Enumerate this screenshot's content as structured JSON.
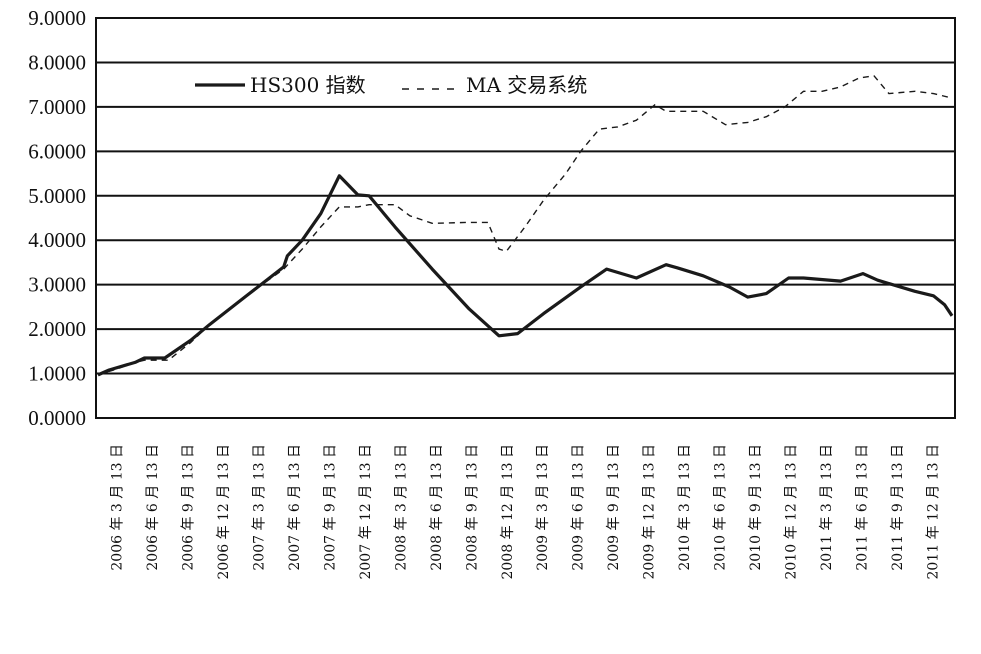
{
  "chart_data": {
    "type": "line",
    "title": "",
    "xlabel": "",
    "ylabel": "",
    "ylim": [
      0,
      9
    ],
    "yticks": [
      "0.0000",
      "1.0000",
      "2.0000",
      "3.0000",
      "4.0000",
      "5.0000",
      "6.0000",
      "7.0000",
      "8.0000",
      "9.0000"
    ],
    "grid": true,
    "legend_position": "top-left",
    "x_tick_labels": [
      "2006 年 3 月 13 日",
      "2006 年 6 月 13 日",
      "2006 年 9 月 13 日",
      "2006 年 12 月 13 日",
      "2007 年 3 月 13 日",
      "2007 年 6 月 13 日",
      "2007 年 9 月 13 日",
      "2007 年 12 月 13 日",
      "2008 年 3 月 13 日",
      "2008 年 6 月 13 日",
      "2008 年 9 月 13 日",
      "2008 年 12 月 13 日",
      "2009 年 3 月 13 日",
      "2009 年 6 月 13 日",
      "2009 年 9 月 13 日",
      "2009 年 12 月 13 日",
      "2010 年 3 月 13 日",
      "2010 年 6 月 13 日",
      "2010 年 9 月 13 日",
      "2010 年 12 月 13 日",
      "2011 年 3 月 13 日",
      "2011 年 6 月 13 日",
      "2011 年 9 月 13 日",
      "2011 年 12 月 13 日"
    ],
    "x_range": [
      0,
      23
    ],
    "series": [
      {
        "name": "HS300 指数",
        "style": "solid",
        "color": "#1a1a1a",
        "points": [
          [
            0,
            0.97
          ],
          [
            0.3,
            1.08
          ],
          [
            1.0,
            1.25
          ],
          [
            1.25,
            1.35
          ],
          [
            1.8,
            1.35
          ],
          [
            2.5,
            1.75
          ],
          [
            3,
            2.1
          ],
          [
            4,
            2.75
          ],
          [
            5,
            3.4
          ],
          [
            5.1,
            3.65
          ],
          [
            5.5,
            4.0
          ],
          [
            6,
            4.6
          ],
          [
            6.5,
            5.45
          ],
          [
            7,
            5.02
          ],
          [
            7.3,
            5.0
          ],
          [
            8,
            4.3
          ],
          [
            9,
            3.35
          ],
          [
            10,
            2.45
          ],
          [
            10.8,
            1.85
          ],
          [
            11.3,
            1.9
          ],
          [
            12,
            2.35
          ],
          [
            13,
            2.95
          ],
          [
            13.7,
            3.35
          ],
          [
            14.5,
            3.15
          ],
          [
            15.3,
            3.45
          ],
          [
            15.6,
            3.38
          ],
          [
            16.3,
            3.2
          ],
          [
            17,
            2.95
          ],
          [
            17.5,
            2.72
          ],
          [
            18,
            2.8
          ],
          [
            18.6,
            3.15
          ],
          [
            19,
            3.15
          ],
          [
            20,
            3.08
          ],
          [
            20.6,
            3.25
          ],
          [
            21,
            3.1
          ],
          [
            22,
            2.85
          ],
          [
            22.5,
            2.75
          ],
          [
            22.8,
            2.55
          ],
          [
            23,
            2.3
          ]
        ]
      },
      {
        "name": "MA 交易系统",
        "style": "dashed",
        "color": "#1a1a1a",
        "points": [
          [
            0,
            0.97
          ],
          [
            0.5,
            1.1
          ],
          [
            1.0,
            1.25
          ],
          [
            1.25,
            1.3
          ],
          [
            1.9,
            1.3
          ],
          [
            2.5,
            1.7
          ],
          [
            3,
            2.1
          ],
          [
            4,
            2.75
          ],
          [
            5,
            3.35
          ],
          [
            5.5,
            3.8
          ],
          [
            6,
            4.3
          ],
          [
            6.5,
            4.75
          ],
          [
            7,
            4.75
          ],
          [
            7.3,
            4.8
          ],
          [
            8,
            4.8
          ],
          [
            8.4,
            4.55
          ],
          [
            9,
            4.38
          ],
          [
            10,
            4.4
          ],
          [
            10.5,
            4.4
          ],
          [
            10.8,
            3.8
          ],
          [
            11,
            3.75
          ],
          [
            11.5,
            4.3
          ],
          [
            12,
            4.9
          ],
          [
            12.6,
            5.5
          ],
          [
            13,
            6.0
          ],
          [
            13.5,
            6.5
          ],
          [
            14,
            6.55
          ],
          [
            14.5,
            6.7
          ],
          [
            15,
            7.05
          ],
          [
            15.3,
            6.9
          ],
          [
            15.8,
            6.9
          ],
          [
            16.3,
            6.9
          ],
          [
            16.9,
            6.6
          ],
          [
            17.5,
            6.65
          ],
          [
            18,
            6.78
          ],
          [
            18.5,
            7.0
          ],
          [
            19,
            7.35
          ],
          [
            19.5,
            7.35
          ],
          [
            20,
            7.45
          ],
          [
            20.5,
            7.65
          ],
          [
            20.9,
            7.7
          ],
          [
            21.3,
            7.3
          ],
          [
            22,
            7.35
          ],
          [
            22.5,
            7.3
          ],
          [
            23,
            7.2
          ]
        ]
      }
    ]
  }
}
